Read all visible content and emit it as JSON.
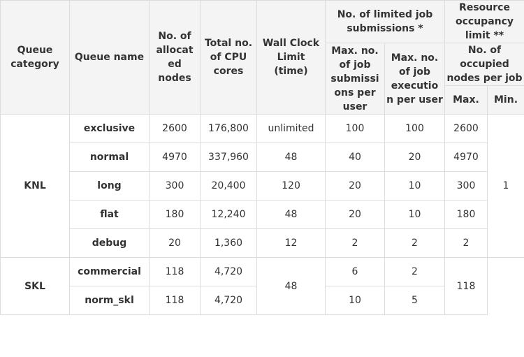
{
  "header": {
    "queue_category": "Queue category",
    "queue_name": "Queue name",
    "allocated_nodes": "No. of allocat ed nodes",
    "cpu_cores": "Total no. of CPU cores",
    "wall_clock": "Wall Clock Limit (time)",
    "limited_job_submissions": "No. of limited job submissions *",
    "max_job_submissions": "Max. no. of job submissi ons per user",
    "max_job_executions": "Max. no. of job executio n per user",
    "resource_occupancy": "Resource occupancy limit **",
    "occupied_nodes": "No. of occupied nodes per job",
    "max": "Max.",
    "min": "Min."
  },
  "knl": {
    "category": "KNL",
    "min_nodes": "1",
    "rows": [
      {
        "name": "exclusive",
        "nodes": "2600",
        "cores": "176,800",
        "wall": "unlimited",
        "max_sub": "100",
        "max_exec": "100",
        "max_nodes": "2600"
      },
      {
        "name": "normal",
        "nodes": "4970",
        "cores": "337,960",
        "wall": "48",
        "max_sub": "40",
        "max_exec": "20",
        "max_nodes": "4970"
      },
      {
        "name": "long",
        "nodes": "300",
        "cores": "20,400",
        "wall": "120",
        "max_sub": "20",
        "max_exec": "10",
        "max_nodes": "300"
      },
      {
        "name": "flat",
        "nodes": "180",
        "cores": "12,240",
        "wall": "48",
        "max_sub": "20",
        "max_exec": "10",
        "max_nodes": "180"
      },
      {
        "name": "debug",
        "nodes": "20",
        "cores": "1,360",
        "wall": "12",
        "max_sub": "2",
        "max_exec": "2",
        "max_nodes": "2"
      }
    ]
  },
  "skl": {
    "category": "SKL",
    "wall": "48",
    "max_nodes": "118",
    "rows": [
      {
        "name": "commercial",
        "nodes": "118",
        "cores": "4,720",
        "max_sub": "6",
        "max_exec": "2"
      },
      {
        "name": "norm_skl",
        "nodes": "118",
        "cores": "4,720",
        "max_sub": "10",
        "max_exec": "5"
      }
    ]
  }
}
